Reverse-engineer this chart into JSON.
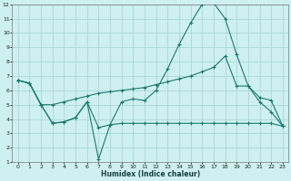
{
  "xlabel": "Humidex (Indice chaleur)",
  "bg_color": "#cff0f0",
  "grid_color": "#a8d8d8",
  "line_color": "#1a7a6e",
  "xlim": [
    -0.5,
    23.5
  ],
  "ylim": [
    1,
    12
  ],
  "xticks": [
    0,
    1,
    2,
    3,
    4,
    5,
    6,
    7,
    8,
    9,
    10,
    11,
    12,
    13,
    14,
    15,
    16,
    17,
    18,
    19,
    20,
    21,
    22,
    23
  ],
  "yticks": [
    1,
    2,
    3,
    4,
    5,
    6,
    7,
    8,
    9,
    10,
    11,
    12
  ],
  "line1_x": [
    0,
    1,
    2,
    3,
    4,
    5,
    6,
    7,
    8,
    9,
    10,
    11,
    12,
    13,
    14,
    15,
    16,
    17,
    18,
    19,
    20,
    21,
    22,
    23
  ],
  "line1_y": [
    6.7,
    6.5,
    5.0,
    3.7,
    3.8,
    4.1,
    5.2,
    1.2,
    3.6,
    5.2,
    5.4,
    5.3,
    6.0,
    7.5,
    9.2,
    10.7,
    12.0,
    12.1,
    11.0,
    8.5,
    6.3,
    5.2,
    4.5,
    3.5
  ],
  "line2_x": [
    0,
    1,
    2,
    3,
    4,
    5,
    6,
    7,
    8,
    9,
    10,
    11,
    12,
    13,
    14,
    15,
    16,
    17,
    18,
    19,
    20,
    21,
    22,
    23
  ],
  "line2_y": [
    6.7,
    6.5,
    5.0,
    5.0,
    5.2,
    5.4,
    5.6,
    5.8,
    5.9,
    6.0,
    6.1,
    6.2,
    6.4,
    6.6,
    6.8,
    7.0,
    7.3,
    7.6,
    8.4,
    6.3,
    6.3,
    5.5,
    5.3,
    3.5
  ],
  "line3_x": [
    0,
    1,
    2,
    3,
    4,
    5,
    6,
    7,
    8,
    9,
    10,
    11,
    12,
    13,
    14,
    15,
    16,
    17,
    18,
    19,
    20,
    21,
    22,
    23
  ],
  "line3_y": [
    6.7,
    6.5,
    5.0,
    3.7,
    3.8,
    4.1,
    5.2,
    3.4,
    3.6,
    3.7,
    3.7,
    3.7,
    3.7,
    3.7,
    3.7,
    3.7,
    3.7,
    3.7,
    3.7,
    3.7,
    3.7,
    3.7,
    3.7,
    3.5
  ]
}
